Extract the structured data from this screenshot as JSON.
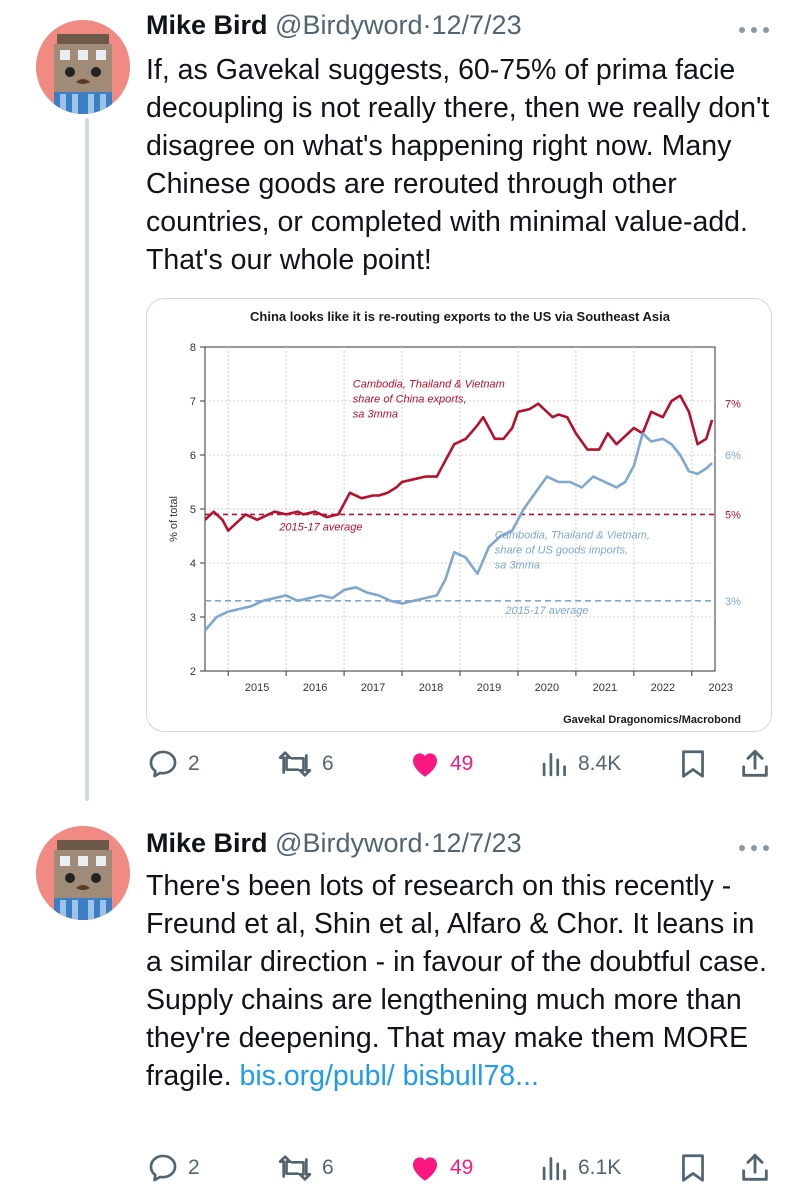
{
  "tweets": [
    {
      "author_name": "Mike Bird",
      "handle": "@Birdyword",
      "separator": "·",
      "date": "12/7/23",
      "text": "If, as Gavekal suggests, 60-75% of prima facie decoupling is not really there, then we really don't disagree on what's happening right now. Many Chinese goods are rerouted through other countries, or completed with minimal value-add. That's our whole point!",
      "actions": {
        "replies": "2",
        "retweets": "6",
        "likes": "49",
        "views": "8.4K"
      }
    },
    {
      "author_name": "Mike Bird",
      "handle": "@Birdyword",
      "separator": "·",
      "date": "12/7/23",
      "text": "There's been lots of research on this recently - Freund et al, Shin et al, Alfaro & Chor. It leans in a similar direction - in favour of the doubtful case. Supply chains are lengthening much more than they're deepening. That may make them MORE fragile. ",
      "link": "bis.org/publ/ bisbull78...",
      "actions": {
        "replies": "2",
        "retweets": "6",
        "likes": "49",
        "views": "6.1K"
      }
    }
  ],
  "colors": {
    "like": "#f91880",
    "link": "#1d9bf0",
    "muted": "#536471",
    "china_series": "#b5112c",
    "us_series": "#7fa7cf"
  },
  "chart_data": {
    "type": "line",
    "title": "China looks like it is re-routing exports to the US via Southeast Asia",
    "ylabel": "% of total",
    "xlabel": "",
    "ylim": [
      2,
      8
    ],
    "yticks": [
      "2",
      "3",
      "4",
      "5",
      "6",
      "7",
      "8"
    ],
    "xlim": [
      2014.6,
      2023.4
    ],
    "xticks": [
      "2015",
      "2016",
      "2017",
      "2018",
      "2019",
      "2020",
      "2021",
      "2022",
      "2023"
    ],
    "grid": true,
    "source": "Gavekal Dragonomics/Macrobond",
    "series": [
      {
        "label": "Cambodia, Thailand & Vietnam share of China exports, sa 3mma",
        "label_lines": [
          "Cambodia, Thailand & Vietnam",
          "share of China exports,",
          "sa 3mma"
        ],
        "end_label": "7%",
        "x": [
          2014.6,
          2014.75,
          2014.9,
          2015.0,
          2015.1,
          2015.3,
          2015.5,
          2015.6,
          2015.8,
          2016.0,
          2016.2,
          2016.3,
          2016.5,
          2016.7,
          2016.9,
          2017.0,
          2017.1,
          2017.3,
          2017.5,
          2017.6,
          2017.75,
          2017.9,
          2018.0,
          2018.2,
          2018.4,
          2018.6,
          2018.75,
          2018.9,
          2019.1,
          2019.3,
          2019.4,
          2019.6,
          2019.75,
          2019.9,
          2020.0,
          2020.2,
          2020.35,
          2020.5,
          2020.6,
          2020.7,
          2020.85,
          2021.0,
          2021.2,
          2021.4,
          2021.55,
          2021.7,
          2021.85,
          2022.0,
          2022.15,
          2022.3,
          2022.5,
          2022.65,
          2022.8,
          2022.95,
          2023.1,
          2023.25,
          2023.35
        ],
        "values": [
          4.8,
          4.95,
          4.8,
          4.6,
          4.7,
          4.9,
          4.8,
          4.85,
          4.95,
          4.9,
          4.95,
          4.9,
          4.95,
          4.85,
          4.9,
          5.1,
          5.3,
          5.2,
          5.25,
          5.25,
          5.3,
          5.4,
          5.5,
          5.55,
          5.6,
          5.6,
          5.9,
          6.2,
          6.3,
          6.55,
          6.7,
          6.3,
          6.3,
          6.5,
          6.8,
          6.85,
          6.95,
          6.8,
          6.7,
          6.75,
          6.7,
          6.4,
          6.1,
          6.1,
          6.4,
          6.2,
          6.35,
          6.5,
          6.4,
          6.8,
          6.7,
          7.0,
          7.1,
          6.8,
          6.2,
          6.3,
          6.65
        ]
      },
      {
        "label": "Cambodia, Thailand & Vietnam, share of US goods imports, sa 3mma",
        "label_lines": [
          "Cambodia, Thailand & Vietnam,",
          "share of US goods imports,",
          "sa 3mma"
        ],
        "end_label": "6%",
        "x": [
          2014.6,
          2014.8,
          2015.0,
          2015.2,
          2015.4,
          2015.6,
          2015.8,
          2016.0,
          2016.2,
          2016.4,
          2016.6,
          2016.8,
          2017.0,
          2017.2,
          2017.4,
          2017.6,
          2017.8,
          2018.0,
          2018.2,
          2018.4,
          2018.6,
          2018.75,
          2018.9,
          2019.1,
          2019.3,
          2019.5,
          2019.7,
          2019.9,
          2020.1,
          2020.3,
          2020.5,
          2020.7,
          2020.9,
          2021.1,
          2021.3,
          2021.5,
          2021.7,
          2021.85,
          2022.0,
          2022.15,
          2022.3,
          2022.5,
          2022.65,
          2022.8,
          2022.95,
          2023.1,
          2023.25,
          2023.35
        ],
        "values": [
          2.75,
          3.0,
          3.1,
          3.15,
          3.2,
          3.3,
          3.35,
          3.4,
          3.3,
          3.35,
          3.4,
          3.35,
          3.5,
          3.55,
          3.45,
          3.4,
          3.3,
          3.25,
          3.3,
          3.35,
          3.4,
          3.7,
          4.2,
          4.1,
          3.8,
          4.3,
          4.5,
          4.6,
          5.0,
          5.3,
          5.6,
          5.5,
          5.5,
          5.4,
          5.6,
          5.5,
          5.4,
          5.5,
          5.8,
          6.4,
          6.25,
          6.3,
          6.2,
          6.0,
          5.7,
          5.65,
          5.75,
          5.85
        ]
      }
    ],
    "reference_lines": [
      {
        "value": 4.9,
        "label": "2015-17 average",
        "end_label": "5%"
      },
      {
        "value": 3.3,
        "label": "2015-17 average",
        "end_label": "3%"
      }
    ]
  }
}
